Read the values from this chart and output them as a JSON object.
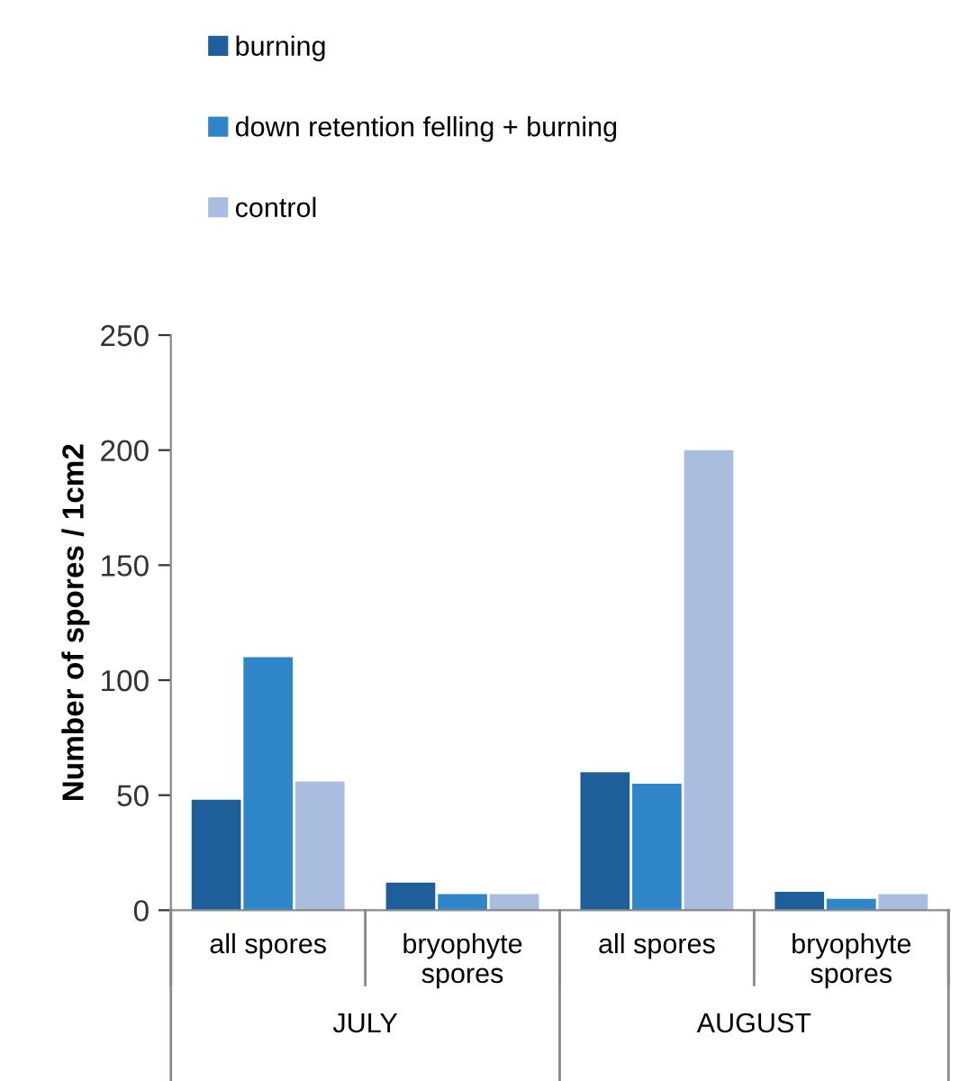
{
  "chart_data": {
    "type": "bar",
    "ylabel": "Number of spores / 1cm2",
    "categories": [
      "all spores",
      "bryophyte spores",
      "all spores",
      "bryophyte spores"
    ],
    "series": [
      {
        "name": "burning",
        "color": "#1f5f99",
        "values": [
          48,
          12,
          60,
          8
        ]
      },
      {
        "name": "down retention felling + burning",
        "color": "#2e86c8",
        "values": [
          110,
          7,
          55,
          5
        ]
      },
      {
        "name": "control",
        "color": "#a9bedf",
        "values": [
          56,
          7,
          200,
          7
        ]
      }
    ],
    "annotations": [
      "JULY",
      "AUGUST"
    ],
    "ylim": [
      0,
      250
    ],
    "yticks": [
      0,
      50,
      100,
      150,
      200,
      250
    ],
    "grid": false,
    "legend": "top left"
  }
}
